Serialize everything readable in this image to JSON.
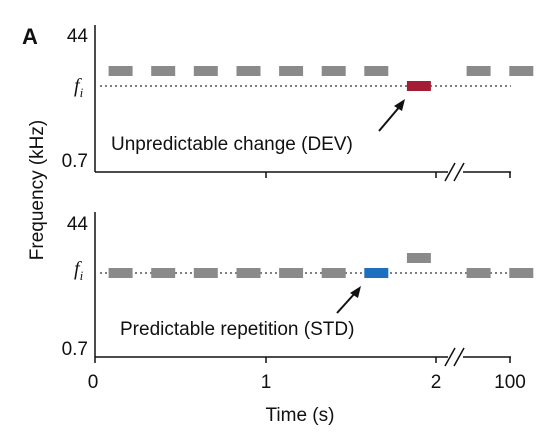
{
  "panel_letter": "A",
  "y_axis_label": "Frequency (kHz)",
  "x_axis_label": "Time (s)",
  "x_ticks": [
    "0",
    "1",
    "2",
    "100"
  ],
  "panels": [
    {
      "id": "dev",
      "y_top_label": "44",
      "y_bottom_label": "0.7",
      "y_mid_label": "f",
      "y_mid_subscript": "i",
      "annotation": "Unpredictable change (DEV)",
      "highlight_color": "#a51d35",
      "upper_tone_times": [
        0.15,
        0.4,
        0.65,
        0.9,
        1.15,
        1.4,
        1.65,
        2.25,
        2.5
      ],
      "baseline_tone_times": [],
      "highlight_time": 1.9,
      "highlight_level": "baseline",
      "extra_tone_times": []
    },
    {
      "id": "std",
      "y_top_label": "44",
      "y_bottom_label": "0.7",
      "y_mid_label": "f",
      "y_mid_subscript": "i",
      "annotation": "Predictable repetition (STD)",
      "highlight_color": "#1f6fc0",
      "upper_tone_times": [],
      "baseline_tone_times": [
        0.15,
        0.4,
        0.65,
        0.9,
        1.15,
        1.4,
        2.25,
        2.5
      ],
      "highlight_time": 1.65,
      "highlight_level": "baseline",
      "extra_tone_times": [
        1.9
      ]
    }
  ],
  "colors": {
    "tone": "#8a8a8a",
    "axis": "#111111"
  }
}
